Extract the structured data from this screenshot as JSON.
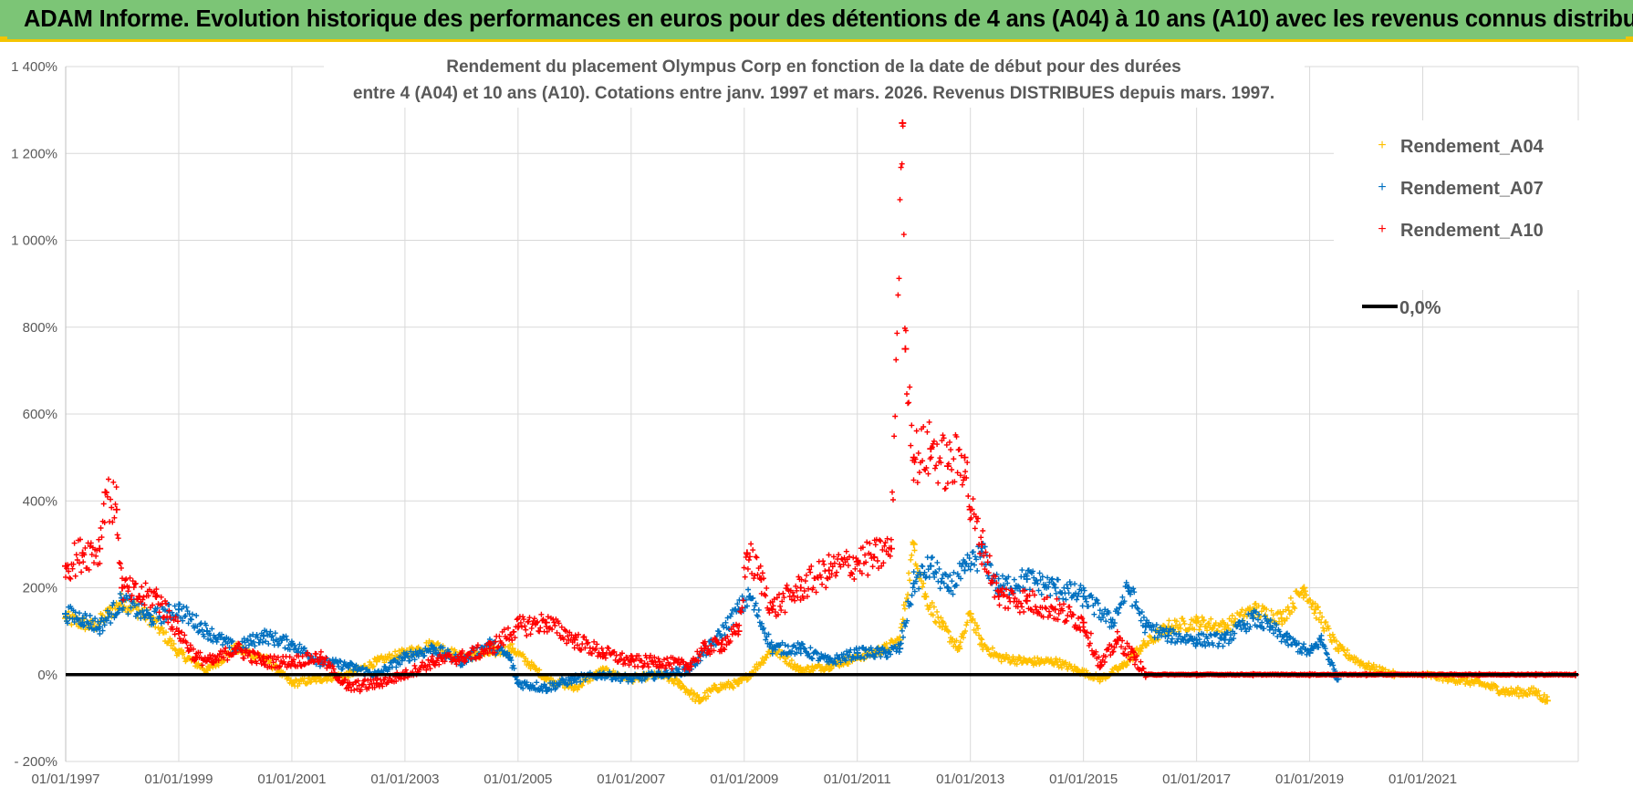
{
  "banner": {
    "title": "ADAM Informe. Evolution historique des performances en euros pour des détentions de 4 ans (A04) à 10 ans (A10) avec les revenus connus distribués"
  },
  "colors": {
    "banner_bg": "#7cc576",
    "banner_border": "#f4c400",
    "a04": "#ffc000",
    "a07": "#0070c0",
    "a10": "#ff0000",
    "zero": "#000000",
    "grid": "#d9d9d9",
    "text": "#595959"
  },
  "chart_data": {
    "type": "scatter",
    "title": [
      "Rendement du placement Olympus Corp en fonction de la date de début pour des durées",
      "entre 4 (A04) et 10 ans (A10).  Cotations entre janv. 1997 et mars. 2026. Revenus DISTRIBUES depuis mars. 1997."
    ],
    "xlim": [
      1997.0,
      2023.75
    ],
    "ylim": [
      -200,
      1400
    ],
    "y_ticks": [
      -200,
      0,
      200,
      400,
      600,
      800,
      1000,
      1200,
      1400
    ],
    "y_tick_labels": [
      "- 200%",
      "0%",
      "200%",
      "400%",
      "600%",
      "800%",
      "1 000%",
      "1 200%",
      "1 400%"
    ],
    "x_ticks": [
      1997,
      1999,
      2001,
      2003,
      2005,
      2007,
      2009,
      2011,
      2013,
      2015,
      2017,
      2019,
      2021
    ],
    "x_tick_labels": [
      "01/01/1997",
      "01/01/1999",
      "01/01/2001",
      "01/01/2003",
      "01/01/2005",
      "01/01/2007",
      "01/01/2009",
      "01/01/2011",
      "01/01/2013",
      "01/01/2015",
      "01/01/2017",
      "01/01/2019",
      "01/01/2021"
    ],
    "legend": {
      "position": "top-right",
      "entries": [
        "Rendement_A04",
        "Rendement_A07",
        "Rendement_A10",
        "0,0%"
      ]
    },
    "series": [
      {
        "name": "Rendement_A04",
        "marker": "+",
        "x": [
          1997.0,
          1997.5,
          1998.0,
          1998.5,
          1999.0,
          1999.5,
          2000.0,
          2000.5,
          2001.0,
          2001.5,
          2002.0,
          2002.5,
          2003.0,
          2003.5,
          2004.0,
          2004.5,
          2004.9,
          2005.5,
          2006.0,
          2006.5,
          2007.0,
          2007.5,
          2007.85,
          2008.2,
          2008.5,
          2008.9,
          2009.1,
          2009.5,
          2010.0,
          2010.5,
          2011.0,
          2011.5,
          2011.75,
          2012.0,
          2012.2,
          2012.5,
          2012.8,
          2013.0,
          2013.2,
          2013.5,
          2014.0,
          2014.5,
          2014.9,
          2015.3,
          2015.7,
          2016.0,
          2016.5,
          2017.0,
          2017.5,
          2018.0,
          2018.5,
          2018.9,
          2019.1,
          2019.5,
          2020.0,
          2020.5,
          2021.0,
          2021.5,
          2022.0,
          2022.5,
          2023.0,
          2023.2
        ],
        "y": [
          130,
          110,
          170,
          130,
          50,
          10,
          60,
          40,
          -20,
          -10,
          0,
          30,
          50,
          70,
          40,
          50,
          60,
          -10,
          -30,
          10,
          -10,
          0,
          -20,
          -60,
          -30,
          -20,
          0,
          60,
          10,
          20,
          40,
          60,
          80,
          300,
          180,
          110,
          60,
          140,
          70,
          40,
          30,
          30,
          10,
          -10,
          20,
          60,
          110,
          120,
          110,
          150,
          130,
          200,
          150,
          60,
          20,
          0,
          0,
          -10,
          -20,
          -40,
          -40,
          -60
        ]
      },
      {
        "name": "Rendement_A07",
        "marker": "+",
        "x": [
          1997.0,
          1997.3,
          1997.6,
          1998.0,
          1998.5,
          1999.0,
          1999.5,
          2000.0,
          2000.5,
          2001.0,
          2001.5,
          2002.0,
          2002.5,
          2003.0,
          2003.5,
          2004.0,
          2004.5,
          2004.85,
          2005.0,
          2005.5,
          2006.0,
          2006.5,
          2007.0,
          2007.5,
          2008.0,
          2008.5,
          2008.9,
          2009.1,
          2009.5,
          2010.0,
          2010.5,
          2011.0,
          2011.5,
          2011.75,
          2012.0,
          2012.3,
          2012.6,
          2012.9,
          2013.2,
          2013.5,
          2014.0,
          2014.5,
          2015.0,
          2015.5,
          2015.8,
          2016.1,
          2016.5,
          2017.0,
          2017.5,
          2018.0,
          2018.3,
          2018.6,
          2019.0,
          2019.2,
          2019.5
        ],
        "y": [
          140,
          130,
          110,
          170,
          130,
          150,
          100,
          60,
          90,
          70,
          30,
          20,
          0,
          40,
          60,
          30,
          70,
          40,
          -20,
          -30,
          -10,
          0,
          -10,
          0,
          10,
          80,
          150,
          180,
          60,
          60,
          30,
          50,
          50,
          60,
          210,
          250,
          200,
          240,
          280,
          200,
          220,
          200,
          180,
          120,
          200,
          110,
          90,
          80,
          80,
          130,
          110,
          80,
          50,
          80,
          -10
        ]
      },
      {
        "name": "Rendement_A10",
        "marker": "+",
        "x": [
          1997.0,
          1997.3,
          1997.6,
          1997.7,
          1997.9,
          1998.0,
          1998.3,
          1998.6,
          1999.0,
          1999.3,
          1999.6,
          2000.0,
          2000.5,
          2001.0,
          2001.5,
          2002.0,
          2002.5,
          2003.0,
          2003.5,
          2004.0,
          2004.5,
          2005.0,
          2005.5,
          2006.0,
          2006.5,
          2007.0,
          2007.5,
          2008.0,
          2008.3,
          2008.6,
          2008.9,
          2009.05,
          2009.3,
          2009.5,
          2010.0,
          2010.5,
          2011.0,
          2011.3,
          2011.6,
          2011.8,
          2011.85,
          2012.0,
          2012.3,
          2012.6,
          2012.9,
          2013.0,
          2013.2,
          2013.5,
          2014.0,
          2014.5,
          2015.0,
          2015.3,
          2015.6,
          2015.9,
          2016.1,
          2017.0,
          2018.0,
          2019.0,
          2020.0,
          2021.0,
          2022.0,
          2023.0,
          2023.7
        ],
        "y": [
          250,
          280,
          290,
          420,
          380,
          200,
          180,
          180,
          100,
          40,
          30,
          60,
          30,
          30,
          40,
          -30,
          -20,
          0,
          30,
          40,
          60,
          110,
          120,
          80,
          50,
          30,
          30,
          20,
          60,
          70,
          100,
          280,
          220,
          150,
          200,
          240,
          260,
          270,
          290,
          1270,
          750,
          500,
          520,
          480,
          500,
          380,
          300,
          180,
          170,
          150,
          120,
          20,
          80,
          40,
          0,
          0,
          0,
          0,
          0,
          0,
          0,
          0,
          0
        ]
      }
    ]
  }
}
